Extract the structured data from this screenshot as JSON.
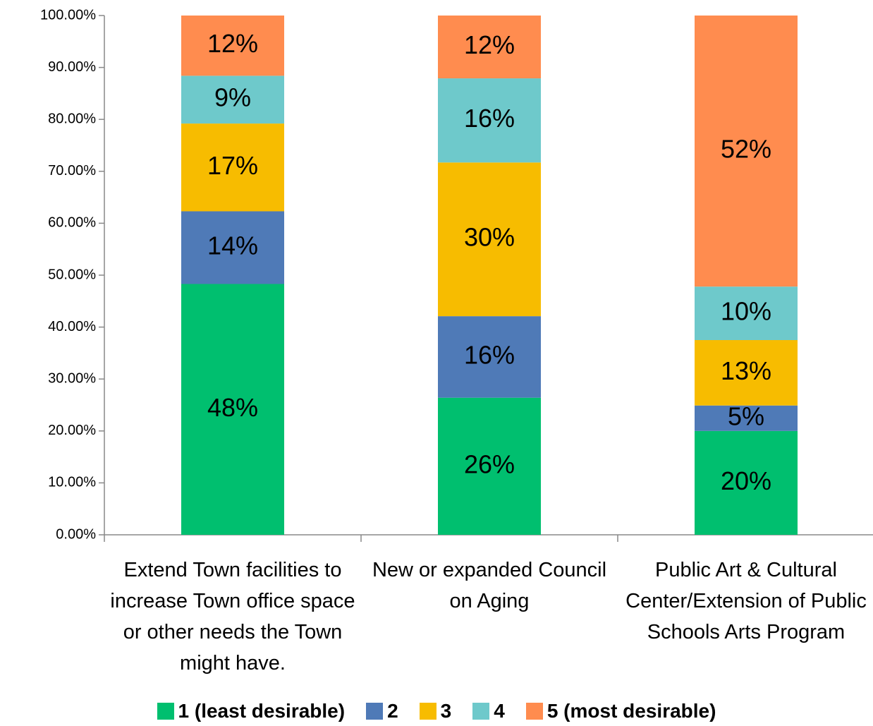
{
  "chart_data": {
    "type": "stacked_bar",
    "categories": [
      "Extend Town facilities to increase Town office space or other needs the Town might have.",
      "New or expanded Council on Aging",
      "Public Art & Cultural Center/Extension of Public Schools Arts Program"
    ],
    "series": [
      {
        "name": "1 (least desirable)",
        "color": "#00bf6f",
        "values": [
          48.3,
          26.4,
          20.0
        ],
        "value_labels": [
          "48%",
          "26%",
          "20%"
        ]
      },
      {
        "name": "2",
        "color": "#4f7ab7",
        "values": [
          14.0,
          15.7,
          4.9
        ],
        "value_labels": [
          "14%",
          "16%",
          "5%"
        ]
      },
      {
        "name": "3",
        "color": "#f7bc00",
        "values": [
          16.9,
          29.6,
          12.6
        ],
        "value_labels": [
          "17%",
          "30%",
          "13%"
        ]
      },
      {
        "name": "4",
        "color": "#6ec9cb",
        "values": [
          9.2,
          16.2,
          10.3
        ],
        "value_labels": [
          "9%",
          "16%",
          "10%"
        ]
      },
      {
        "name": "5 (most desirable)",
        "color": "#ff8c4f",
        "values": [
          11.6,
          12.1,
          52.2
        ],
        "value_labels": [
          "12%",
          "12%",
          "52%"
        ]
      }
    ],
    "ylim": [
      0,
      100
    ],
    "yticks": [
      {
        "value": 0,
        "label": "0.00%"
      },
      {
        "value": 10,
        "label": "10.00%"
      },
      {
        "value": 20,
        "label": "20.00%"
      },
      {
        "value": 30,
        "label": "30.00%"
      },
      {
        "value": 40,
        "label": "40.00%"
      },
      {
        "value": 50,
        "label": "50.00%"
      },
      {
        "value": 60,
        "label": "60.00%"
      },
      {
        "value": 70,
        "label": "70.00%"
      },
      {
        "value": 80,
        "label": "80.00%"
      },
      {
        "value": 90,
        "label": "90.00%"
      },
      {
        "value": 100,
        "label": "100.00%"
      }
    ],
    "legend": "bottom"
  }
}
